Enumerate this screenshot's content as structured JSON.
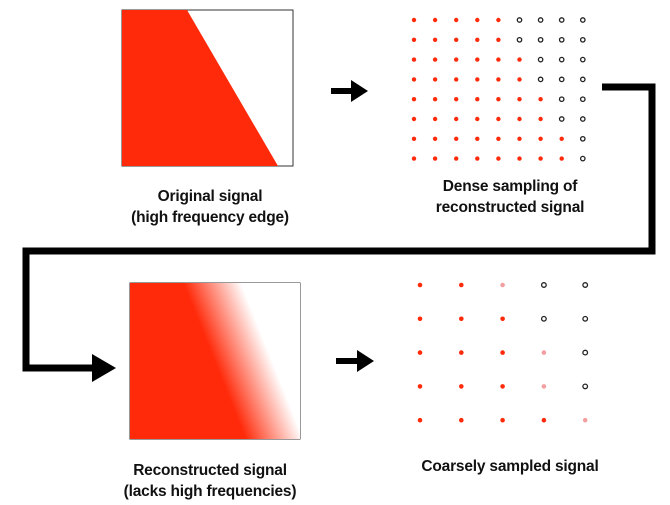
{
  "captions": {
    "original": {
      "line1": "Original signal",
      "line2": "(high frequency edge)"
    },
    "dense": {
      "line1": "Dense sampling of",
      "line2": "reconstructed signal"
    },
    "reconstructed": {
      "line1": "Reconstructed signal",
      "line2": "(lacks high frequencies)"
    },
    "coarse": {
      "line1": "Coarsely sampled signal"
    }
  },
  "colors": {
    "signal_red": "#ff2a0a",
    "sample_dark": "#222222",
    "sample_pink": "#f4a0a0",
    "arrow": "#000000",
    "frame": "#333333"
  },
  "dense_grid": {
    "rows": 8,
    "cols": 9,
    "cells": [
      "rrrrrdddd",
      "rrrrrdddd",
      "rrrrrrddd",
      "rrrrrrddd",
      "rrrrrrrdd",
      "rrrrrrrdd",
      "rrrrrrrrd",
      "rrrrrrrrd"
    ]
  },
  "coarse_grid": {
    "rows": 5,
    "cols": 5,
    "cells": [
      "rrpdd",
      "rrrdd",
      "rrrpd",
      "rrrpd",
      "rrrrp"
    ]
  }
}
